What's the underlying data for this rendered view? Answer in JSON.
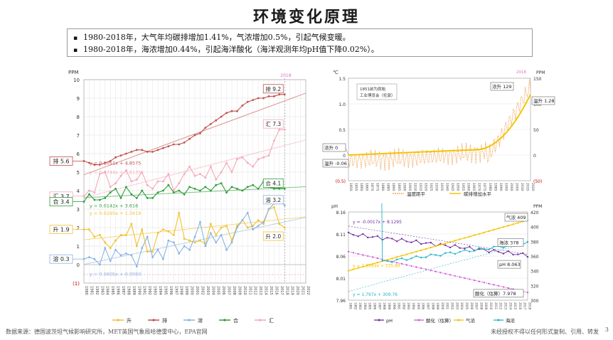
{
  "page": {
    "title": "环境变化原理",
    "bullets": [
      "1980-2018年，大气年均碳排增加1.41%，气浓增加0.5%，引起气候变暖。",
      "1980-2018年，海浓增加0.44%，引起海洋酸化（海洋观测年均pH值下降0.02%）。"
    ],
    "footer_source": "数据来源：德国波茨坦气候影响研究所，MET英国气象局哈德雷中心，EPA官网",
    "footer_right": "未经授权不得以任何形式复制、引用、转发",
    "page_number": "3"
  },
  "colors": {
    "pai": "#c0504d",
    "hui": "#f4a7b9",
    "he": "#2e9e3a",
    "rong": "#8ab4e0",
    "sheng": "#f2c12e",
    "temp": "#f0a860",
    "co2": "#f5c400",
    "ph": "#7030a0",
    "acid": "#d65fd6",
    "sea": "#1fb5c8"
  },
  "chart_data": [
    {
      "type": "line",
      "name": "left",
      "ylabel": "PPM",
      "ylim": [
        -1,
        10
      ],
      "yticks": [
        "(1)",
        "0",
        "1",
        "2",
        "3",
        "4",
        "5",
        "6",
        "7",
        "8",
        "9",
        "10"
      ],
      "x_start": 1980,
      "x_end": 2022,
      "marker_year_label": "2018",
      "series": [
        {
          "name": "升",
          "key": "sheng",
          "values": [
            1.9,
            1.9,
            1.5,
            1.6,
            1.2,
            0.9,
            1.3,
            1.6,
            1.6,
            2.2,
            1.0,
            1.9,
            0.7,
            0.7,
            1.7,
            1.9,
            1.8,
            1.6,
            2.8,
            1.4,
            1.3,
            1.2,
            1.3,
            1.1,
            2.2,
            1.6,
            2.0,
            2.1,
            1.3,
            2.1,
            2.4,
            2.0,
            2.1,
            2.4,
            2.2,
            3.0,
            3.1,
            2.2,
            2.0
          ]
        },
        {
          "name": "排",
          "key": "pai",
          "values": [
            5.6,
            5.5,
            5.4,
            5.4,
            5.5,
            5.6,
            5.8,
            5.9,
            6.0,
            6.1,
            6.2,
            6.2,
            6.1,
            6.1,
            6.2,
            6.3,
            6.4,
            6.5,
            6.5,
            6.6,
            6.8,
            7.0,
            7.1,
            7.4,
            7.6,
            7.8,
            8.0,
            8.2,
            8.3,
            8.3,
            8.6,
            8.8,
            8.9,
            9.0,
            9.0,
            9.1,
            9.1,
            9.2,
            9.2
          ]
        },
        {
          "name": "溶",
          "key": "rong",
          "values": [
            0.3,
            0.4,
            0.3,
            0.0,
            0.9,
            0.2,
            0.8,
            0.5,
            0.6,
            0.5,
            -0.1,
            0.9,
            1.5,
            0.4,
            0.8,
            0.3,
            1.3,
            1.2,
            0.6,
            1.0,
            0.8,
            1.5,
            2.3,
            1.0,
            1.7,
            1.2,
            1.6,
            0.8,
            1.2,
            2.0,
            2.4,
            2.8,
            1.9,
            2.1,
            2.3,
            3.0,
            3.3,
            3.6,
            3.2
          ]
        },
        {
          "name": "汇",
          "key": "hui",
          "values": [
            3.7,
            4.0,
            3.9,
            4.9,
            5.0,
            4.2,
            4.4,
            4.8,
            5.1,
            4.5,
            4.6,
            5.0,
            4.3,
            4.1,
            4.5,
            4.5,
            4.9,
            4.0,
            4.4,
            4.9,
            5.3,
            4.8,
            4.9,
            4.7,
            5.3,
            4.6,
            5.0,
            5.5,
            5.0,
            5.7,
            5.8,
            5.5,
            5.3,
            5.7,
            5.8,
            5.9,
            6.7,
            7.3,
            7.3
          ]
        },
        {
          "name": "合",
          "key": "he",
          "values": [
            3.4,
            3.8,
            3.5,
            3.5,
            3.6,
            3.9,
            4.1,
            3.6,
            4.2,
            3.8,
            3.6,
            4.0,
            3.6,
            3.6,
            3.9,
            4.0,
            4.3,
            3.9,
            4.0,
            3.8,
            4.2,
            4.1,
            4.0,
            4.2,
            4.0,
            4.3,
            4.4,
            3.9,
            4.2,
            4.1,
            4.0,
            4.2,
            4.3,
            4.1,
            4.5,
            4.2,
            4.1,
            4.1,
            4.1
          ]
        }
      ],
      "start_labels": [
        {
          "text": "排 5.6",
          "key": "pai",
          "value": 5.6
        },
        {
          "text": "汇 3.7",
          "key": "hui",
          "value": 3.7
        },
        {
          "text": "合 3.4",
          "key": "he",
          "value": 3.4
        },
        {
          "text": "升 1.9",
          "key": "sheng",
          "value": 1.9
        },
        {
          "text": "溶 0.3",
          "key": "rong",
          "value": 0.3
        }
      ],
      "end_labels": [
        {
          "text": "排 9.2",
          "key": "pai",
          "value": 9.2
        },
        {
          "text": "汇 7.3",
          "key": "hui",
          "value": 7.3
        },
        {
          "text": "合 4.1",
          "key": "he",
          "value": 4.1
        },
        {
          "text": "溶 3.2",
          "key": "rong",
          "value": 3.2
        },
        {
          "text": "升 2.0",
          "key": "sheng",
          "value": 2.0
        }
      ],
      "trend_equations": [
        {
          "text": "y = 0.1051x + 4.8575",
          "key": "pai",
          "value": 5.4
        },
        {
          "text": "y = 0.0744x + 3.6135",
          "key": "hui",
          "value": 4.9
        },
        {
          "text": "y = 0.0142x + 3.616",
          "key": "he",
          "value": 3.1
        },
        {
          "text": "y = 0.0295x + 1.3419",
          "key": "sheng",
          "value": 2.7
        },
        {
          "text": "y = 0.0605x + 0.0093",
          "key": "rong",
          "value": -0.6
        }
      ],
      "trends": [
        {
          "key": "pai",
          "slope": 0.1051,
          "intercept": 4.8575
        },
        {
          "key": "hui",
          "slope": 0.0744,
          "intercept": 3.6135
        },
        {
          "key": "he",
          "slope": 0.0142,
          "intercept": 3.616
        },
        {
          "key": "sheng",
          "slope": 0.0295,
          "intercept": 1.3419
        },
        {
          "key": "rong",
          "slope": 0.0605,
          "intercept": 0.0093
        }
      ],
      "legend": [
        {
          "name": "升",
          "key": "sheng"
        },
        {
          "name": "排",
          "key": "pai"
        },
        {
          "name": "溶",
          "key": "rong"
        },
        {
          "name": "合",
          "key": "he"
        },
        {
          "name": "汇",
          "key": "hui"
        }
      ]
    },
    {
      "type": "line",
      "name": "top-right",
      "ylabel_left": "℃",
      "ylabel_right": "PPM",
      "ylim_left": [
        -0.5,
        1.5
      ],
      "ylim_right": [
        -50,
        150
      ],
      "yticks_left": [
        "(0.5)",
        "0",
        "0.5",
        "1.0",
        "1.5"
      ],
      "yticks_right": [
        "(50)",
        "0",
        "50",
        "100",
        "150"
      ],
      "x_start": 1850,
      "x_end": 2020,
      "marker_year_label": "2018",
      "annotation": "1851前为原始工业博览会（伦敦）",
      "labels": [
        {
          "text": "浓升 129"
        },
        {
          "text": "温升 1.28"
        },
        {
          "text": "浓升 0"
        },
        {
          "text": "温升 -0.06"
        }
      ],
      "legend": [
        {
          "name": "温度距平",
          "key": "temp"
        },
        {
          "name": "碳排增加水平",
          "key": "co2"
        }
      ]
    },
    {
      "type": "line",
      "name": "bottom-right",
      "ylabel_left": "pH",
      "ylabel_right": "PPM",
      "ylim_left": [
        7.96,
        8.16
      ],
      "ylim_right": [
        300,
        420
      ],
      "yticks_left": [
        "7.96",
        "8.01",
        "8.06",
        "8.11",
        "8.16"
      ],
      "yticks_right": [
        "300",
        "320",
        "340",
        "360",
        "380",
        "400",
        "420"
      ],
      "x_start": 1981,
      "x_end": 2018,
      "labels": [
        {
          "text": "气浓 409"
        },
        {
          "text": "海浓 378"
        },
        {
          "text": "pH 8.063"
        },
        {
          "text": "酸化（估算）7.978"
        }
      ],
      "trend_equations": [
        {
          "text": "y = -0.0017x + 8.1295",
          "key": "ph"
        },
        {
          "text": "y = 1.8584x + 335.89",
          "key": "co2"
        },
        {
          "text": "y = 1.797x + 309.76",
          "key": "sea"
        }
      ],
      "legend": [
        {
          "name": "pH",
          "key": "ph"
        },
        {
          "name": "酸化（估算）",
          "key": "acid"
        },
        {
          "name": "气浓",
          "key": "co2"
        },
        {
          "name": "海浓",
          "key": "sea"
        }
      ]
    }
  ]
}
